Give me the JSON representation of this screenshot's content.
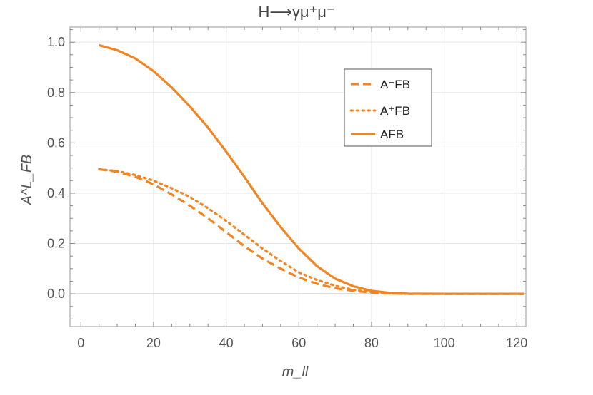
{
  "chart_data": {
    "type": "line",
    "title": "H⟶γμ⁺μ⁻",
    "xlabel": "m_ll",
    "ylabel": "A^L_FB",
    "xlim": [
      -3,
      122.5
    ],
    "ylim": [
      -0.13,
      1.06
    ],
    "xticks": [
      0,
      20,
      40,
      60,
      80,
      100,
      120
    ],
    "yticks": [
      0.0,
      0.2,
      0.4,
      0.6,
      0.8,
      1.0
    ],
    "ytick_labels": [
      "0.0",
      "0.2",
      "0.4",
      "0.6",
      "0.8",
      "1.0"
    ],
    "grid": true,
    "legend_position": "top-right",
    "accent_color": "#f28522",
    "series": [
      {
        "name": "A⁻FB",
        "style": "dashed",
        "x": [
          5,
          10,
          15,
          20,
          25,
          30,
          35,
          40,
          45,
          50,
          55,
          60,
          65,
          70,
          75,
          80,
          85,
          90,
          100,
          110,
          122
        ],
        "y": [
          0.495,
          0.485,
          0.465,
          0.435,
          0.395,
          0.35,
          0.3,
          0.245,
          0.19,
          0.14,
          0.1,
          0.065,
          0.04,
          0.022,
          0.012,
          0.005,
          0.002,
          0.0,
          0.0,
          0.0,
          0.0
        ]
      },
      {
        "name": "A⁺FB",
        "style": "dotted",
        "x": [
          5,
          10,
          15,
          20,
          25,
          30,
          35,
          40,
          45,
          50,
          55,
          60,
          65,
          70,
          75,
          80,
          85,
          90,
          100,
          110,
          122
        ],
        "y": [
          0.495,
          0.488,
          0.472,
          0.45,
          0.42,
          0.385,
          0.34,
          0.29,
          0.235,
          0.18,
          0.13,
          0.085,
          0.055,
          0.032,
          0.016,
          0.007,
          0.002,
          0.0,
          0.0,
          0.0,
          0.0
        ]
      },
      {
        "name": "AFB",
        "style": "solid",
        "x": [
          5,
          10,
          15,
          20,
          25,
          30,
          35,
          40,
          45,
          50,
          55,
          60,
          65,
          70,
          75,
          80,
          85,
          90,
          100,
          110,
          122
        ],
        "y": [
          0.988,
          0.968,
          0.935,
          0.885,
          0.82,
          0.745,
          0.66,
          0.565,
          0.465,
          0.36,
          0.265,
          0.18,
          0.11,
          0.06,
          0.03,
          0.012,
          0.004,
          0.001,
          0.0,
          0.0,
          0.0
        ]
      }
    ]
  }
}
